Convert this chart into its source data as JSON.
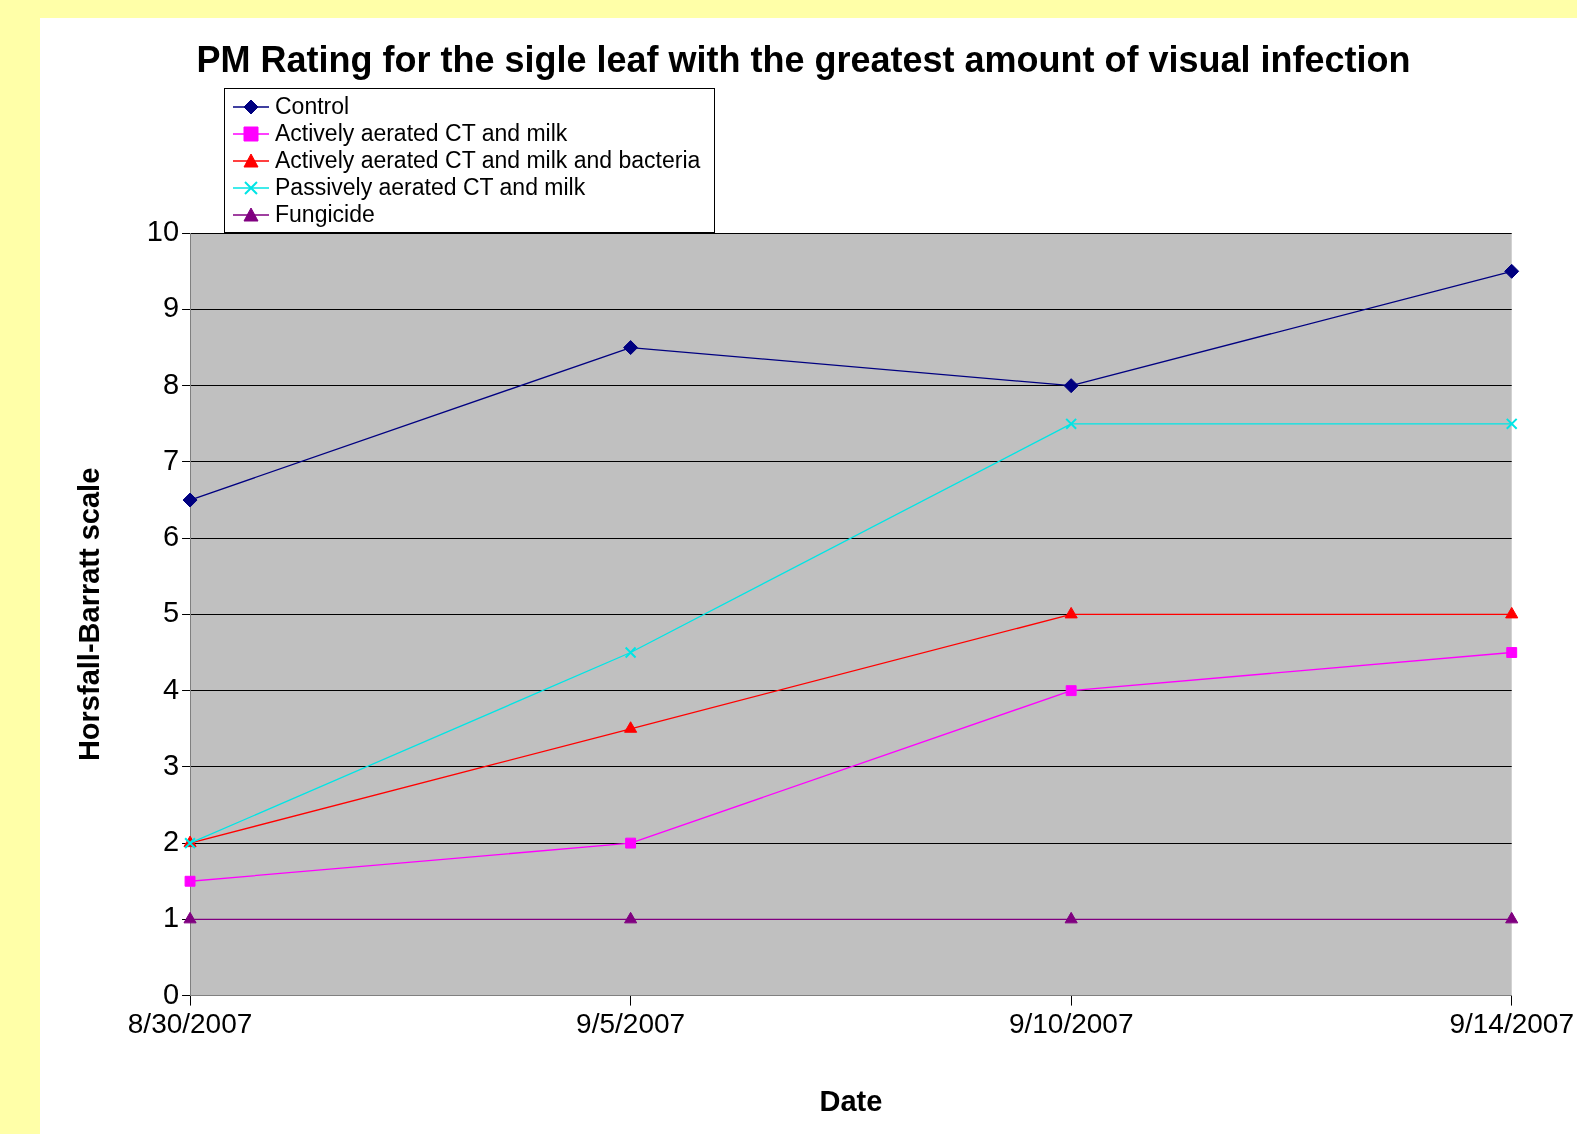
{
  "chart_data": {
    "type": "line",
    "title": "PM Rating for the sigle leaf with the greatest amount of visual infection",
    "xlabel": "Date",
    "ylabel": "Horsfall-Barratt scale",
    "categories": [
      "8/30/2007",
      "9/5/2007",
      "9/10/2007",
      "9/14/2007"
    ],
    "ylim": [
      0,
      10
    ],
    "yticks": [
      0,
      1,
      2,
      3,
      4,
      5,
      6,
      7,
      8,
      9,
      10
    ],
    "grid": "y",
    "legend": "top left",
    "line_style": "solid",
    "series": [
      {
        "name": "Control",
        "color": "#000080",
        "marker": "diamond",
        "values": [
          6.5,
          8.5,
          8,
          9.5
        ]
      },
      {
        "name": "Actively aerated CT and milk",
        "color": "#ff00ff",
        "marker": "square",
        "values": [
          1.5,
          2,
          4,
          4.5
        ]
      },
      {
        "name": "Actively aerated CT and milk and bacteria",
        "color": "#ff0000",
        "marker": "triangle",
        "values": [
          2,
          3.5,
          5,
          5
        ]
      },
      {
        "name": "Passively aerated CT and milk",
        "color": "#00e5e5",
        "marker": "cross",
        "values": [
          2,
          4.5,
          7.5,
          7.5
        ]
      },
      {
        "name": "Fungicide",
        "color": "#800080",
        "marker": "triangle",
        "values": [
          1,
          1,
          1,
          1
        ]
      }
    ]
  }
}
